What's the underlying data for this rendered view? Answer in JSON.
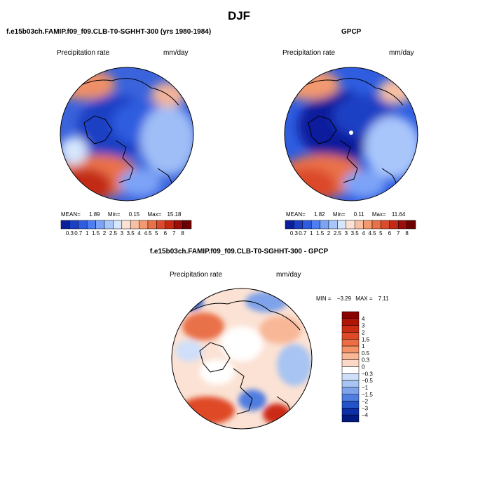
{
  "figure": {
    "title": "DJF"
  },
  "panels": [
    {
      "title": "f.e15b03ch.FAMIP.f09_f09.CLB-T0-SGHHT-300 (yrs 1980-1984)",
      "variable": "Precipitation rate",
      "units": "mm/day",
      "stats": {
        "mean_label": "MEAN=",
        "mean": "1.89",
        "min_label": "Min=",
        "min": "0.15",
        "max_label": "Max=",
        "max": "15.18"
      }
    },
    {
      "title": "GPCP",
      "variable": "Precipitation rate",
      "units": "mm/day",
      "stats": {
        "mean_label": "MEAN=",
        "mean": "1.82",
        "min_label": "Min=",
        "min": "0.11",
        "max_label": "Max=",
        "max": "11.64"
      }
    },
    {
      "title": "f.e15b03ch.FAMIP.f09_f09.CLB-T0-SGHHT-300 - GPCP",
      "variable": "Precipitation rate",
      "units": "mm/day",
      "stats": {
        "min_label": "MIN =",
        "min": "−3.29",
        "max_label": "MAX =",
        "max": "7.11"
      }
    }
  ],
  "chart_data": [
    {
      "type": "heatmap",
      "projection": "north-polar-stereographic",
      "title": "f.e15b03ch.FAMIP.f09_f09.CLB-T0-SGHHT-300 (yrs 1980-1984)",
      "variable": "Precipitation rate",
      "units": "mm/day",
      "stats": {
        "mean": 1.89,
        "min": 0.15,
        "max": 15.18
      },
      "colorbar": {
        "orientation": "horizontal",
        "ticks": [
          "0.3",
          "0.7",
          "1",
          "1.5",
          "2",
          "2.5",
          "3",
          "3.5",
          "4",
          "4.5",
          "5",
          "6",
          "7",
          "8"
        ],
        "colors": [
          "#0a1f9c",
          "#1c3fc4",
          "#2f5de0",
          "#4f7ef2",
          "#7ba3f7",
          "#a9c6fb",
          "#d6e6fd",
          "#fbe2d4",
          "#f7c0a4",
          "#f2996f",
          "#e9714a",
          "#db4a2a",
          "#c22a16",
          "#9b0d0a",
          "#6e0000"
        ]
      }
    },
    {
      "type": "heatmap",
      "projection": "north-polar-stereographic",
      "title": "GPCP",
      "variable": "Precipitation rate",
      "units": "mm/day",
      "stats": {
        "mean": 1.82,
        "min": 0.11,
        "max": 11.64
      },
      "colorbar": {
        "orientation": "horizontal",
        "ticks": [
          "0.3",
          "0.7",
          "1",
          "1.5",
          "2",
          "2.5",
          "3",
          "3.5",
          "4",
          "4.5",
          "5",
          "6",
          "7",
          "8"
        ],
        "colors": [
          "#0a1f9c",
          "#1c3fc4",
          "#2f5de0",
          "#4f7ef2",
          "#7ba3f7",
          "#a9c6fb",
          "#d6e6fd",
          "#fbe2d4",
          "#f7c0a4",
          "#f2996f",
          "#e9714a",
          "#db4a2a",
          "#c22a16",
          "#9b0d0a",
          "#6e0000"
        ]
      }
    },
    {
      "type": "heatmap",
      "projection": "north-polar-stereographic",
      "title": "f.e15b03ch.FAMIP.f09_f09.CLB-T0-SGHHT-300 - GPCP",
      "variable": "Precipitation rate",
      "units": "mm/day",
      "stats": {
        "min": -3.29,
        "max": 7.11
      },
      "colorbar": {
        "orientation": "vertical",
        "ticks": [
          "4",
          "3",
          "2",
          "1.5",
          "1",
          "0.5",
          "0.3",
          "0",
          "−0.3",
          "−0.5",
          "−1",
          "−1.5",
          "−2",
          "−3",
          "−4"
        ],
        "colors": [
          "#8a0000",
          "#b01606",
          "#cc2c12",
          "#df4a26",
          "#ee6e44",
          "#f39468",
          "#f8b797",
          "#fbd9c6",
          "#ffffff",
          "#cfdff9",
          "#a8c4f2",
          "#7fa3ea",
          "#4f7de0",
          "#2453c9",
          "#0c2fa8",
          "#001a80"
        ]
      }
    }
  ]
}
